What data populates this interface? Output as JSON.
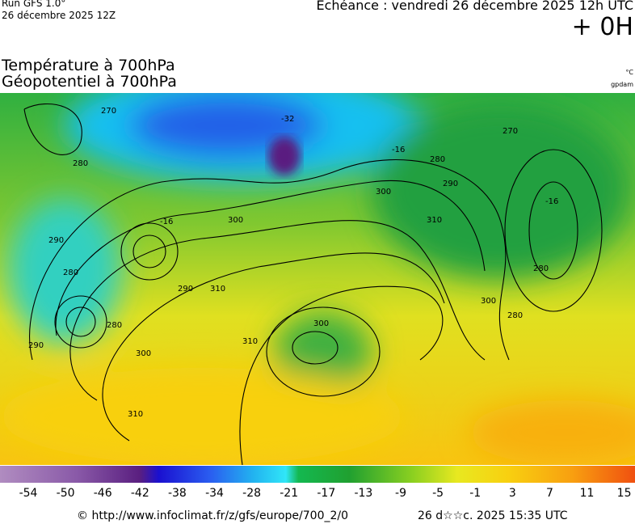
{
  "header": {
    "run": "Run GFS 1.0°",
    "date": "26 décembre 2025 12Z",
    "echeance": "Echéance : vendredi 26 décembre 2025 12h UTC",
    "lead": "+ 0H",
    "title1": "Température à 700hPa",
    "title2": "Géopotentiel à 700hPa",
    "unit1": "°C",
    "unit2": "gpdam"
  },
  "contour_labels": [
    "270",
    "280",
    "280",
    "290",
    "280",
    "300",
    "290",
    "310",
    "300",
    "310",
    "310",
    "300",
    "280",
    "280",
    "270",
    "300",
    "290",
    "310",
    "290",
    "300",
    "280",
    "-32",
    "-16",
    "-16",
    "-16"
  ],
  "colorbar_labels": [
    "-54",
    "-50",
    "-46",
    "-42",
    "-38",
    "-34",
    "-28",
    "-21",
    "-17",
    "-13",
    "-9",
    "-5",
    "-1",
    "3",
    "7",
    "11",
    "15"
  ],
  "footer": {
    "url": "© http://www.infoclimat.fr/z/gfs/europe/700_2/0",
    "timestamp": "26 d☆☆c. 2025 15:35 UTC"
  }
}
